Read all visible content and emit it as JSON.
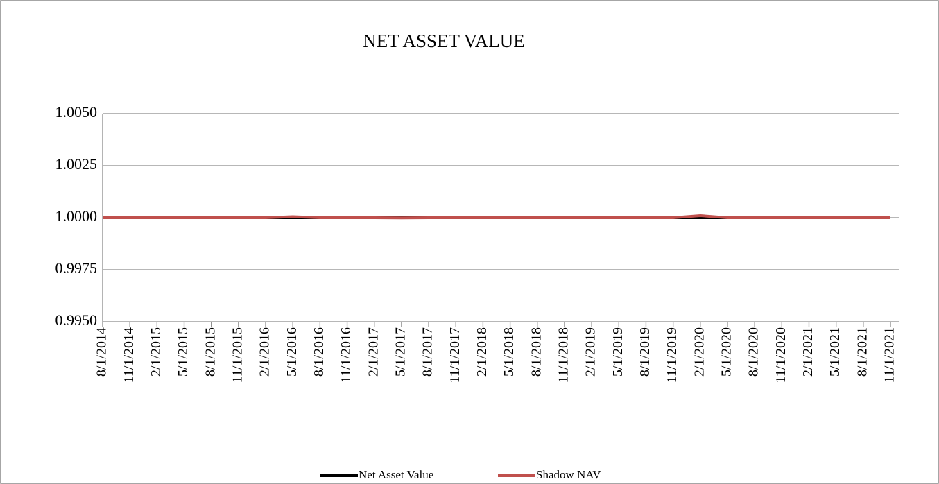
{
  "chart_data": {
    "type": "line",
    "title": "NET ASSET VALUE",
    "x": [
      "8/1/2014",
      "11/1/2014",
      "2/1/2015",
      "5/1/2015",
      "8/1/2015",
      "11/1/2015",
      "2/1/2016",
      "5/1/2016",
      "8/1/2016",
      "11/1/2016",
      "2/1/2017",
      "5/1/2017",
      "8/1/2017",
      "11/1/2017",
      "2/1/2018",
      "5/1/2018",
      "8/1/2018",
      "11/1/2018",
      "2/1/2019",
      "5/1/2019",
      "8/1/2019",
      "11/1/2019",
      "2/1/2020",
      "5/1/2020",
      "8/1/2020",
      "11/1/2020",
      "2/1/2021",
      "5/1/2021",
      "8/1/2021",
      "11/1/2021"
    ],
    "series": [
      {
        "name": "Net Asset Value",
        "color": "#000000",
        "values": [
          1,
          1,
          1,
          1,
          1,
          1,
          1,
          1,
          1,
          1,
          1,
          1,
          1,
          1,
          1,
          1,
          1,
          1,
          1,
          1,
          1,
          1,
          1,
          1,
          1,
          1,
          1,
          1,
          1,
          1
        ]
      },
      {
        "name": "Shadow NAV",
        "color": "#c0504d",
        "values": [
          1,
          1,
          1,
          1,
          1,
          1,
          1,
          1.00005,
          1,
          1,
          1,
          0.99999,
          1,
          1,
          1,
          1,
          1,
          1,
          1,
          1,
          1,
          1,
          1.0001,
          1,
          1,
          1,
          1,
          1,
          1,
          1
        ]
      }
    ],
    "ylim": [
      0.995,
      1.005
    ],
    "yticks": [
      {
        "value": 0.995,
        "label": "0.9950"
      },
      {
        "value": 0.9975,
        "label": "0.9975"
      },
      {
        "value": 1,
        "label": "1.0000"
      },
      {
        "value": 1.0025,
        "label": "1.0025"
      },
      {
        "value": 1.005,
        "label": "1.0050"
      }
    ],
    "grid": true,
    "legend": "bottom"
  }
}
